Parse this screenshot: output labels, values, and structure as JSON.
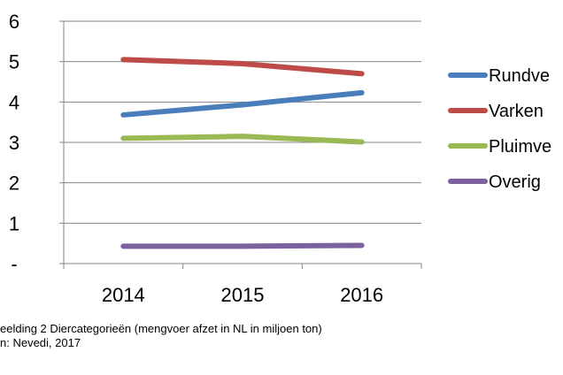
{
  "chart_data": {
    "type": "line",
    "categories": [
      "2014",
      "2015",
      "2016"
    ],
    "series": [
      {
        "name": "Rundvee",
        "label_shown": "Rundve",
        "color": "#4a7ebb",
        "values": [
          3.68,
          3.93,
          4.23
        ]
      },
      {
        "name": "Varkens",
        "label_shown": "Varken",
        "color": "#be4b48",
        "values": [
          5.05,
          4.95,
          4.7
        ]
      },
      {
        "name": "Pluimvee",
        "label_shown": "Pluimve",
        "color": "#98b954",
        "values": [
          3.1,
          3.15,
          3.01
        ]
      },
      {
        "name": "Overig",
        "label_shown": "Overig",
        "color": "#7d60a0",
        "values": [
          0.43,
          0.43,
          0.45
        ]
      }
    ],
    "y_ticks": [
      "-",
      "1",
      "2",
      "3",
      "4",
      "5",
      "6"
    ],
    "ylim": [
      0,
      6
    ],
    "grid": "horizontal",
    "legend": "right"
  },
  "caption": {
    "line1": "eelding 2 Diercategorieën (mengvoer afzet in NL in miljoen ton)",
    "line2": "n: Nevedi, 2017"
  }
}
